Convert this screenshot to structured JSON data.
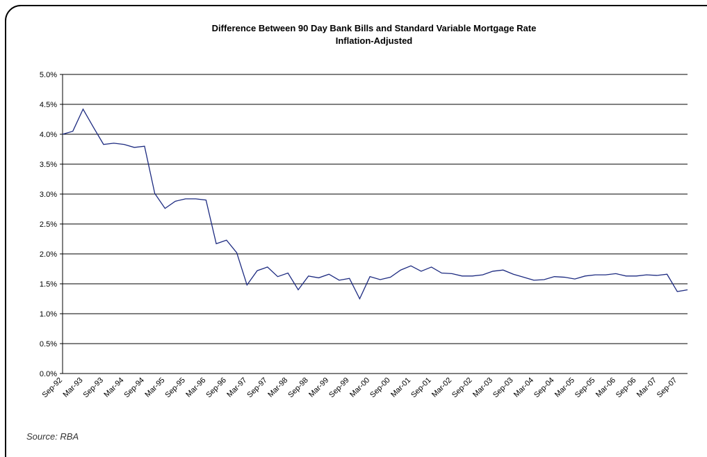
{
  "chart_data": {
    "type": "line",
    "title": "Difference Between 90 Day Bank Bills and Standard Variable Mortgage Rate",
    "subtitle": "Inflation-Adjusted",
    "source": "Source: RBA",
    "categories": [
      "Sep-92",
      null,
      "Mar-93",
      null,
      "Sep-93",
      null,
      "Mar-94",
      null,
      "Sep-94",
      null,
      "Mar-95",
      null,
      "Sep-95",
      null,
      "Mar-96",
      null,
      "Sep-96",
      null,
      "Mar-97",
      null,
      "Sep-97",
      null,
      "Mar-98",
      null,
      "Sep-98",
      null,
      "Mar-99",
      null,
      "Sep-99",
      null,
      "Mar-00",
      null,
      "Sep-00",
      null,
      "Mar-01",
      null,
      "Sep-01",
      null,
      "Mar-02",
      null,
      "Sep-02",
      null,
      "Mar-03",
      null,
      "Sep-03",
      null,
      "Mar-04",
      null,
      "Sep-04",
      null,
      "Mar-05",
      null,
      "Sep-05",
      null,
      "Mar-06",
      null,
      "Sep-06",
      null,
      "Mar-07",
      null,
      "Sep-07",
      null
    ],
    "series": [
      {
        "color": "#1c2a80",
        "values": [
          4.0,
          4.05,
          4.42,
          4.12,
          3.83,
          3.85,
          3.83,
          3.78,
          3.8,
          3.01,
          2.76,
          2.88,
          2.92,
          2.92,
          2.9,
          2.17,
          2.23,
          2.02,
          1.48,
          1.72,
          1.78,
          1.62,
          1.68,
          1.4,
          1.63,
          1.6,
          1.66,
          1.56,
          1.59,
          1.25,
          1.62,
          1.57,
          1.61,
          1.73,
          1.8,
          1.71,
          1.78,
          1.68,
          1.67,
          1.63,
          1.63,
          1.65,
          1.71,
          1.73,
          1.66,
          1.61,
          1.56,
          1.57,
          1.62,
          1.61,
          1.58,
          1.63,
          1.65,
          1.65,
          1.67,
          1.63,
          1.63,
          1.65,
          1.64,
          1.66,
          1.37,
          1.4
        ]
      }
    ],
    "ylim": [
      0,
      5
    ],
    "yticks": [
      {
        "value": 0,
        "label": "0.0%"
      },
      {
        "value": 0.5,
        "label": "0.5%"
      },
      {
        "value": 1,
        "label": "1.0%"
      },
      {
        "value": 1.5,
        "label": "1.5%"
      },
      {
        "value": 2,
        "label": "2.0%"
      },
      {
        "value": 2.5,
        "label": "2.5%"
      },
      {
        "value": 3,
        "label": "3.0%"
      },
      {
        "value": 3.5,
        "label": "3.5%"
      },
      {
        "value": 4,
        "label": "4.0%"
      },
      {
        "value": 4.5,
        "label": "4.5%"
      },
      {
        "value": 5,
        "label": "5.0%"
      }
    ],
    "grid": true
  }
}
